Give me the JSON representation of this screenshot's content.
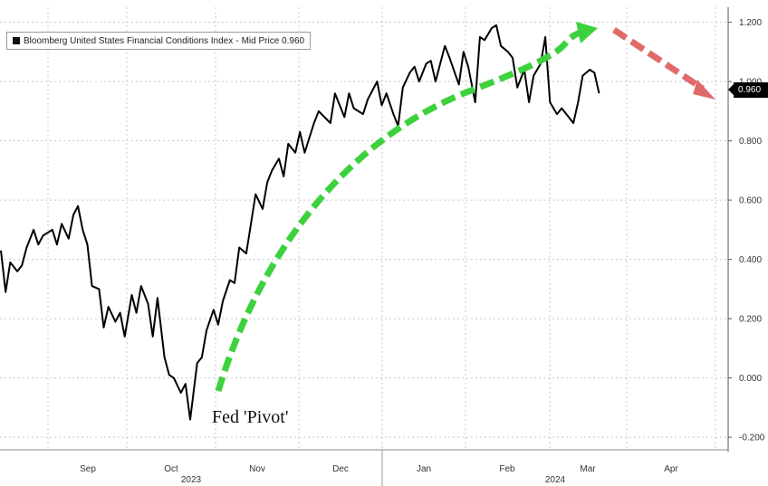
{
  "legend": {
    "series_name": "Bloomberg United States Financial Conditions Index",
    "field": "Mid Price",
    "value": "0.960"
  },
  "last_price_label": "0.960",
  "annotation": "Fed 'Pivot'",
  "colors": {
    "line": "#000000",
    "green_arrow": "#3dd13d",
    "red_arrow": "#e06a6a",
    "grid": "#c8c8c8",
    "price_tag": "#000000"
  },
  "chart_data": {
    "type": "line",
    "title": "",
    "xlabel": "",
    "ylabel": "",
    "ylim": [
      -0.22,
      1.27
    ],
    "y_ticks": [
      "1.200",
      "1.000",
      "0.800",
      "0.600",
      "0.400",
      "0.200",
      "0.000",
      "-0.200"
    ],
    "x_ticks": [
      "Sep",
      "Oct",
      "Nov",
      "Dec",
      "Jan",
      "Feb",
      "Mar",
      "Apr"
    ],
    "year_labels": [
      "2023",
      "2024"
    ],
    "grid": true,
    "legend_position": "top-left",
    "series": [
      {
        "name": "Bloomberg United States Financial Conditions Index",
        "x": [
          "2023-08-14",
          "2023-08-16",
          "2023-08-18",
          "2023-08-21",
          "2023-08-23",
          "2023-08-25",
          "2023-08-28",
          "2023-08-30",
          "2023-09-01",
          "2023-09-05",
          "2023-09-07",
          "2023-09-09",
          "2023-09-12",
          "2023-09-14",
          "2023-09-16",
          "2023-09-18",
          "2023-09-20",
          "2023-09-22",
          "2023-09-25",
          "2023-09-27",
          "2023-09-29",
          "2023-10-02",
          "2023-10-04",
          "2023-10-06",
          "2023-10-09",
          "2023-10-11",
          "2023-10-13",
          "2023-10-16",
          "2023-10-18",
          "2023-10-20",
          "2023-10-23",
          "2023-10-25",
          "2023-10-27",
          "2023-10-30",
          "2023-11-01",
          "2023-11-03",
          "2023-11-06",
          "2023-11-08",
          "2023-11-10",
          "2023-11-13",
          "2023-11-15",
          "2023-11-17",
          "2023-11-20",
          "2023-11-22",
          "2023-11-24",
          "2023-11-27",
          "2023-11-29",
          "2023-12-01",
          "2023-12-04",
          "2023-12-06",
          "2023-12-08",
          "2023-12-11",
          "2023-12-13",
          "2023-12-15",
          "2023-12-18",
          "2023-12-20",
          "2023-12-22",
          "2023-12-26",
          "2023-12-28",
          "2024-01-02",
          "2024-01-04",
          "2024-01-08",
          "2024-01-10",
          "2024-01-12",
          "2024-01-16",
          "2024-01-18",
          "2024-01-22",
          "2024-01-24",
          "2024-01-26",
          "2024-01-29",
          "2024-01-31",
          "2024-02-02",
          "2024-02-05",
          "2024-02-07",
          "2024-02-09",
          "2024-02-12",
          "2024-02-14",
          "2024-02-16",
          "2024-02-20",
          "2024-02-22",
          "2024-02-26",
          "2024-02-28",
          "2024-03-01",
          "2024-03-04",
          "2024-03-06",
          "2024-03-08",
          "2024-03-11",
          "2024-03-13",
          "2024-03-15",
          "2024-03-18",
          "2024-03-20",
          "2024-03-22",
          "2024-03-25",
          "2024-03-27",
          "2024-03-29",
          "2024-04-01",
          "2024-04-03",
          "2024-04-05",
          "2024-04-08",
          "2024-04-10",
          "2024-04-12",
          "2024-04-15",
          "2024-04-17",
          "2024-04-19",
          "2024-04-22",
          "2024-04-24",
          "2024-04-26"
        ],
        "values": [
          0.43,
          0.29,
          0.39,
          0.36,
          0.38,
          0.44,
          0.5,
          0.45,
          0.48,
          0.5,
          0.45,
          0.52,
          0.47,
          0.55,
          0.58,
          0.5,
          0.45,
          0.31,
          0.3,
          0.17,
          0.24,
          0.19,
          0.22,
          0.14,
          0.28,
          0.22,
          0.31,
          0.25,
          0.14,
          0.27,
          0.07,
          0.01,
          0.0,
          -0.05,
          -0.02,
          -0.14,
          0.05,
          0.07,
          0.16,
          0.23,
          0.18,
          0.26,
          0.33,
          0.32,
          0.44,
          0.42,
          0.52,
          0.62,
          0.57,
          0.66,
          0.7,
          0.74,
          0.68,
          0.79,
          0.76,
          0.83,
          0.76,
          0.86,
          0.9,
          0.86,
          0.96,
          0.88,
          0.96,
          0.91,
          0.89,
          0.94,
          1.0,
          0.92,
          0.96,
          0.89,
          0.85,
          0.98,
          1.03,
          1.05,
          1.0,
          1.06,
          1.07,
          1.0,
          1.12,
          1.08,
          0.99,
          1.1,
          1.05,
          0.93,
          1.15,
          1.14,
          1.18,
          1.19,
          1.12,
          1.1,
          1.08,
          0.98,
          1.04,
          0.93,
          1.02,
          1.06,
          1.15,
          0.93,
          0.89,
          0.91,
          0.89,
          0.86,
          0.93,
          1.02,
          1.04,
          1.03,
          0.96
        ]
      }
    ]
  }
}
